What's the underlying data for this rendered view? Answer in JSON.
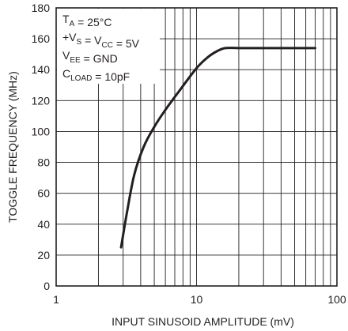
{
  "chart_data": {
    "type": "line",
    "title": "",
    "xlabel": "INPUT SINUSOID AMPLITUDE (mV)",
    "ylabel": "TOGGLE FREQUENCY (MHz)",
    "xscale": "log",
    "xlim": [
      1,
      100
    ],
    "ylim": [
      0,
      180
    ],
    "xticks": [
      1,
      10,
      100
    ],
    "xtick_labels": [
      "1",
      "10",
      "100"
    ],
    "yticks": [
      0,
      20,
      40,
      60,
      80,
      100,
      120,
      140,
      160,
      180
    ],
    "ytick_labels": [
      "0",
      "20",
      "40",
      "60",
      "80",
      "100",
      "120",
      "140",
      "160",
      "180"
    ],
    "grid": true,
    "colors": {
      "line": "#231f20",
      "grid": "#231f20",
      "background": "#ffffff"
    },
    "series": [
      {
        "x": [
          2.9,
          3.2,
          3.6,
          4.2,
          5.0,
          6.0,
          7.5,
          10,
          12,
          14,
          16,
          20,
          30,
          50,
          70
        ],
        "y": [
          25,
          48,
          72,
          90,
          103,
          114,
          126,
          141,
          148,
          152,
          154,
          154,
          154,
          154,
          154
        ]
      }
    ],
    "annotations": [
      {
        "parts": [
          [
            "T",
            false
          ],
          [
            "A",
            true
          ],
          [
            " = 25°C",
            false
          ]
        ]
      },
      {
        "parts": [
          [
            "+V",
            false
          ],
          [
            "S",
            true
          ],
          [
            " = V",
            false
          ],
          [
            "CC",
            true
          ],
          [
            " = 5V",
            false
          ]
        ]
      },
      {
        "parts": [
          [
            "V",
            false
          ],
          [
            "EE",
            true
          ],
          [
            " = GND",
            false
          ]
        ]
      },
      {
        "parts": [
          [
            "C",
            false
          ],
          [
            "LOAD",
            true
          ],
          [
            " = 10pF",
            false
          ]
        ]
      }
    ]
  }
}
